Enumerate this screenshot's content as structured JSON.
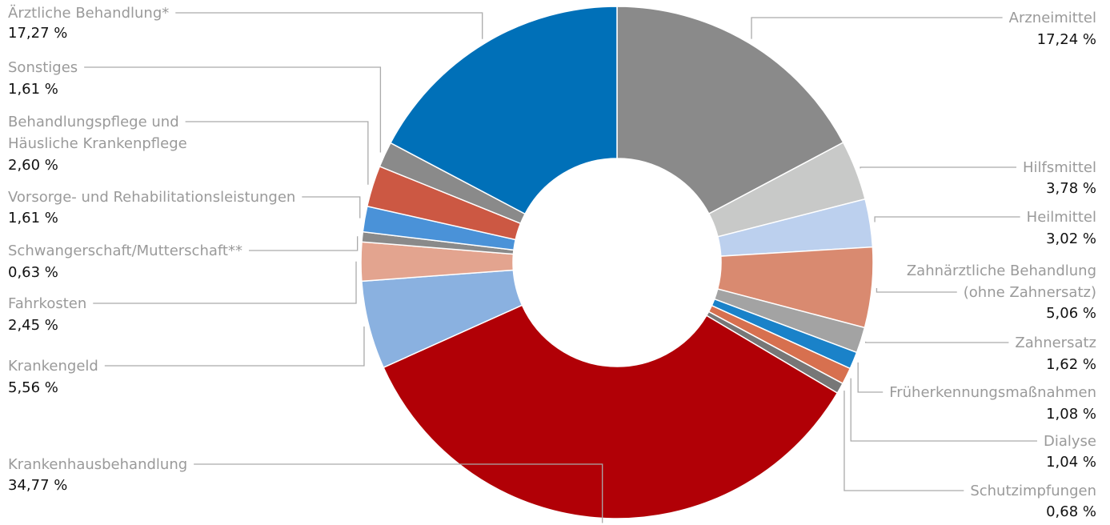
{
  "chart_data": {
    "type": "donut",
    "categories": [
      "Arzneimittel",
      "Hilfsmittel",
      "Heilmittel",
      "Zahnärztliche Behandlung\n(ohne Zahnersatz)",
      "Zahnersatz",
      "Früherkennungsmaßnahmen",
      "Dialyse",
      "Schutzimpfungen",
      "Krankenhausbehandlung",
      "Krankengeld",
      "Fahrkosten",
      "Schwangerschaft/Mutterschaft**",
      "Vorsorge- und Rehabilitationsleistungen",
      "Behandlungspflege und\nHäusliche Krankenpflege",
      "Sonstiges",
      "Ärztliche Behandlung*"
    ],
    "values": [
      17.24,
      3.78,
      3.02,
      5.06,
      1.62,
      1.08,
      1.04,
      0.68,
      34.77,
      5.56,
      2.45,
      0.63,
      1.61,
      2.6,
      1.61,
      17.27
    ],
    "value_labels": [
      "17,24 %",
      "3,78 %",
      "3,02 %",
      "5,06 %",
      "1,62 %",
      "1,08 %",
      "1,04 %",
      "0,68 %",
      "34,77 %",
      "5,56 %",
      "2,45 %",
      "0,63 %",
      "1,61 %",
      "2,60 %",
      "1,61 %",
      "17,27 %"
    ],
    "colors": [
      "#8a8a8a",
      "#c8c9c8",
      "#bcd0ee",
      "#d98a70",
      "#a3a3a3",
      "#1a82c9",
      "#d7704f",
      "#777777",
      "#b10006",
      "#8ab1e0",
      "#e3a48f",
      "#8a8a8a",
      "#4a92d8",
      "#cc5843",
      "#8a8a8a",
      "#0070b8"
    ]
  }
}
